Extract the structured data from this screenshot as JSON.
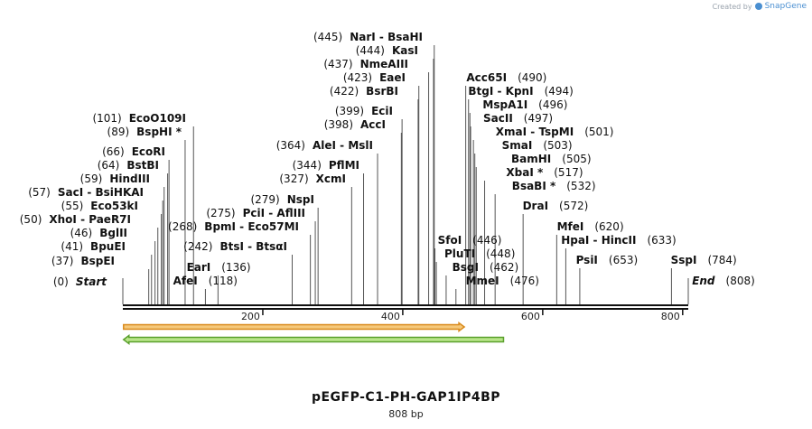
{
  "credit": {
    "prefix": "Created by",
    "brand": "SnapGene"
  },
  "map": {
    "title": "pEGFP-C1-PH-GAP1IP4BP",
    "length_label": "808 bp",
    "total_bp": 808,
    "ticks": [
      200,
      400,
      600,
      800
    ],
    "features": [
      {
        "name": "forward-orange-feature",
        "start": 1,
        "end": 488,
        "direction": "forward",
        "fill": "#f5c87a",
        "stroke": "#d98a1c"
      },
      {
        "name": "reverse-green-feature",
        "start": 1,
        "end": 544,
        "direction": "reverse",
        "fill": "#b9e58a",
        "stroke": "#5aa02c"
      }
    ],
    "colors": {
      "backbone": "#111111",
      "line": "#555555"
    }
  },
  "chart_data": {
    "type": "plasmid-linear-map",
    "title": "pEGFP-C1-PH-GAP1IP4BP",
    "subtitle": "808 bp",
    "axis_ticks": [
      200,
      400,
      600,
      800
    ],
    "sites": [
      {
        "name": "Start",
        "pos": 0,
        "label": "(0)",
        "italic": true
      },
      {
        "name": "BspEI",
        "pos": 37,
        "label": "(37)"
      },
      {
        "name": "BpuEI",
        "pos": 41,
        "label": "(41)"
      },
      {
        "name": "BglII",
        "pos": 46,
        "label": "(46)"
      },
      {
        "name": "XhoI - PaeR7I",
        "pos": 50,
        "label": "(50)"
      },
      {
        "name": "Eco53kI",
        "pos": 55,
        "label": "(55)"
      },
      {
        "name": "SacI - BsiHKAI",
        "pos": 57,
        "label": "(57)"
      },
      {
        "name": "HindIII",
        "pos": 59,
        "label": "(59)"
      },
      {
        "name": "BstBI",
        "pos": 64,
        "label": "(64)"
      },
      {
        "name": "EcoRI",
        "pos": 66,
        "label": "(66)"
      },
      {
        "name": "BspHI *",
        "pos": 89,
        "label": "(89)"
      },
      {
        "name": "EcoO109I",
        "pos": 101,
        "label": "(101)"
      },
      {
        "name": "AfeI",
        "pos": 118,
        "label": "(118)"
      },
      {
        "name": "EarI",
        "pos": 136,
        "label": "(136)"
      },
      {
        "name": "BtsI - BtsαI",
        "pos": 242,
        "label": "(242)"
      },
      {
        "name": "BpmI - Eco57MI",
        "pos": 268,
        "label": "(268)"
      },
      {
        "name": "PciI - AflIII",
        "pos": 275,
        "label": "(275)"
      },
      {
        "name": "NspI",
        "pos": 279,
        "label": "(279)"
      },
      {
        "name": "XcmI",
        "pos": 327,
        "label": "(327)"
      },
      {
        "name": "PflMI",
        "pos": 344,
        "label": "(344)"
      },
      {
        "name": "AleI - MslI",
        "pos": 364,
        "label": "(364)"
      },
      {
        "name": "AccI",
        "pos": 398,
        "label": "(398)"
      },
      {
        "name": "EciI",
        "pos": 399,
        "label": "(399)"
      },
      {
        "name": "BsrBI",
        "pos": 422,
        "label": "(422)"
      },
      {
        "name": "EaeI",
        "pos": 423,
        "label": "(423)"
      },
      {
        "name": "NmeAIII",
        "pos": 437,
        "label": "(437)"
      },
      {
        "name": "KasI",
        "pos": 444,
        "label": "(444)"
      },
      {
        "name": "NarI - BsaHI",
        "pos": 445,
        "label": "(445)"
      },
      {
        "name": "SfoI",
        "pos": 446,
        "label": "(446)"
      },
      {
        "name": "PluTI",
        "pos": 448,
        "label": "(448)"
      },
      {
        "name": "BsgI",
        "pos": 462,
        "label": "(462)"
      },
      {
        "name": "MmeI",
        "pos": 476,
        "label": "(476)"
      },
      {
        "name": "Acc65I",
        "pos": 490,
        "label": "(490)"
      },
      {
        "name": "BtgI - KpnI",
        "pos": 494,
        "label": "(494)"
      },
      {
        "name": "MspA1I",
        "pos": 496,
        "label": "(496)"
      },
      {
        "name": "SacII",
        "pos": 497,
        "label": "(497)"
      },
      {
        "name": "XmaI - TspMI",
        "pos": 501,
        "label": "(501)"
      },
      {
        "name": "SmaI",
        "pos": 503,
        "label": "(503)"
      },
      {
        "name": "BamHI",
        "pos": 505,
        "label": "(505)"
      },
      {
        "name": "XbaI *",
        "pos": 517,
        "label": "(517)"
      },
      {
        "name": "BsaBI *",
        "pos": 532,
        "label": "(532)"
      },
      {
        "name": "DraI",
        "pos": 572,
        "label": "(572)"
      },
      {
        "name": "MfeI",
        "pos": 620,
        "label": "(620)"
      },
      {
        "name": "HpaI - HincII",
        "pos": 633,
        "label": "(633)"
      },
      {
        "name": "PsiI",
        "pos": 653,
        "label": "(653)"
      },
      {
        "name": "SspI",
        "pos": 784,
        "label": "(784)"
      },
      {
        "name": "End",
        "pos": 808,
        "label": "(808)",
        "italic": true
      }
    ]
  }
}
